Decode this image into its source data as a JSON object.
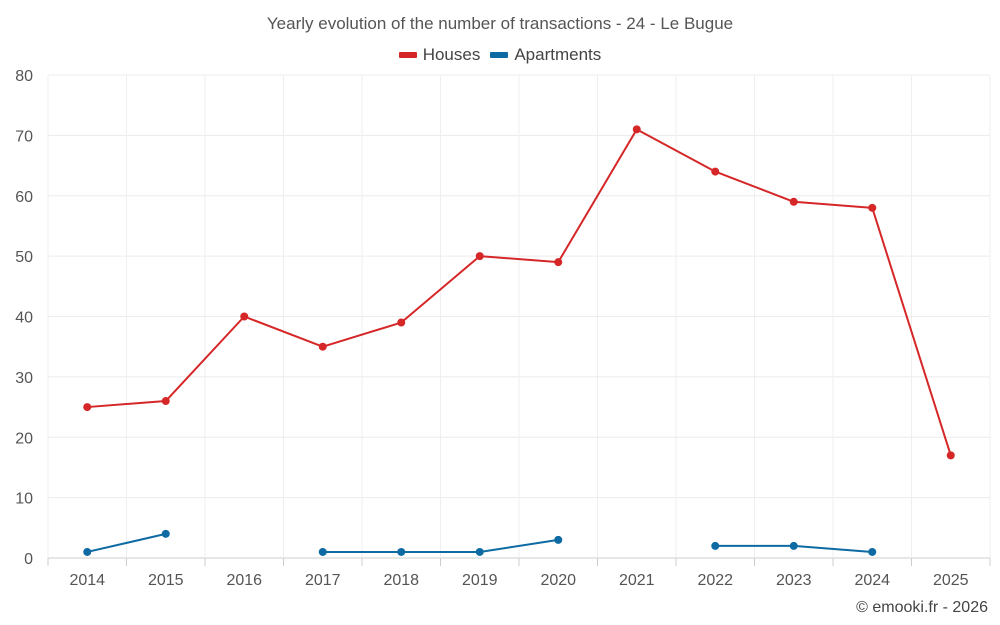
{
  "chart_data": {
    "type": "line",
    "title": "Yearly evolution of the number of transactions - 24 - Le Bugue",
    "categories": [
      "2014",
      "2015",
      "2016",
      "2017",
      "2018",
      "2019",
      "2020",
      "2021",
      "2022",
      "2023",
      "2024",
      "2025"
    ],
    "series": [
      {
        "name": "Houses",
        "color": "#d62728",
        "values": [
          25,
          26,
          40,
          35,
          39,
          50,
          49,
          71,
          64,
          59,
          58,
          17
        ]
      },
      {
        "name": "Apartments",
        "color": "#0e6aa3",
        "values": [
          1,
          4,
          null,
          1,
          1,
          1,
          3,
          null,
          2,
          2,
          1,
          null
        ]
      }
    ],
    "ylim": [
      0,
      80
    ],
    "yticks": [
      0,
      10,
      20,
      30,
      40,
      50,
      60,
      70,
      80
    ],
    "xlabel": "",
    "ylabel": "",
    "grid": true,
    "legend_position": "top-center"
  },
  "credit": "© emooki.fr - 2026"
}
